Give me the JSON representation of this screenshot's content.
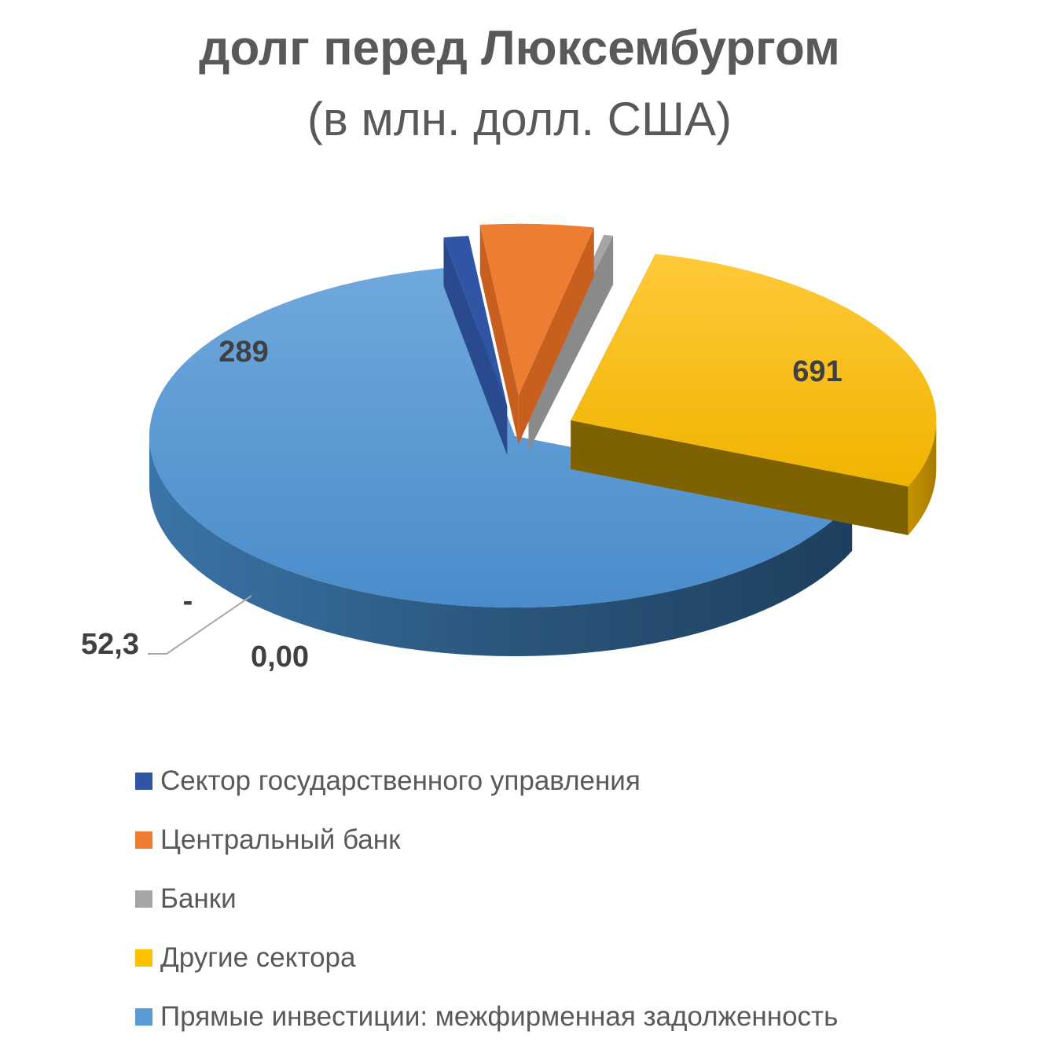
{
  "chart_data": {
    "type": "pie",
    "title": "долг перед Люксембургом",
    "subtitle": "(в млн. долл. США)",
    "categories": [
      "Сектор государственного управления",
      "Центральный банк",
      "Банки",
      "Другие сектора",
      "Прямые инвестиции: межфирменная задолженность"
    ],
    "values": [
      0.0,
      52.3,
      0,
      289,
      691
    ],
    "data_labels": [
      "0,00",
      "52,3",
      "-",
      "289",
      "691"
    ],
    "colors": [
      "#2f55a4",
      "#ed7d31",
      "#a5a5a5",
      "#ffc000",
      "#5b9bd5"
    ],
    "legend_position": "bottom"
  }
}
